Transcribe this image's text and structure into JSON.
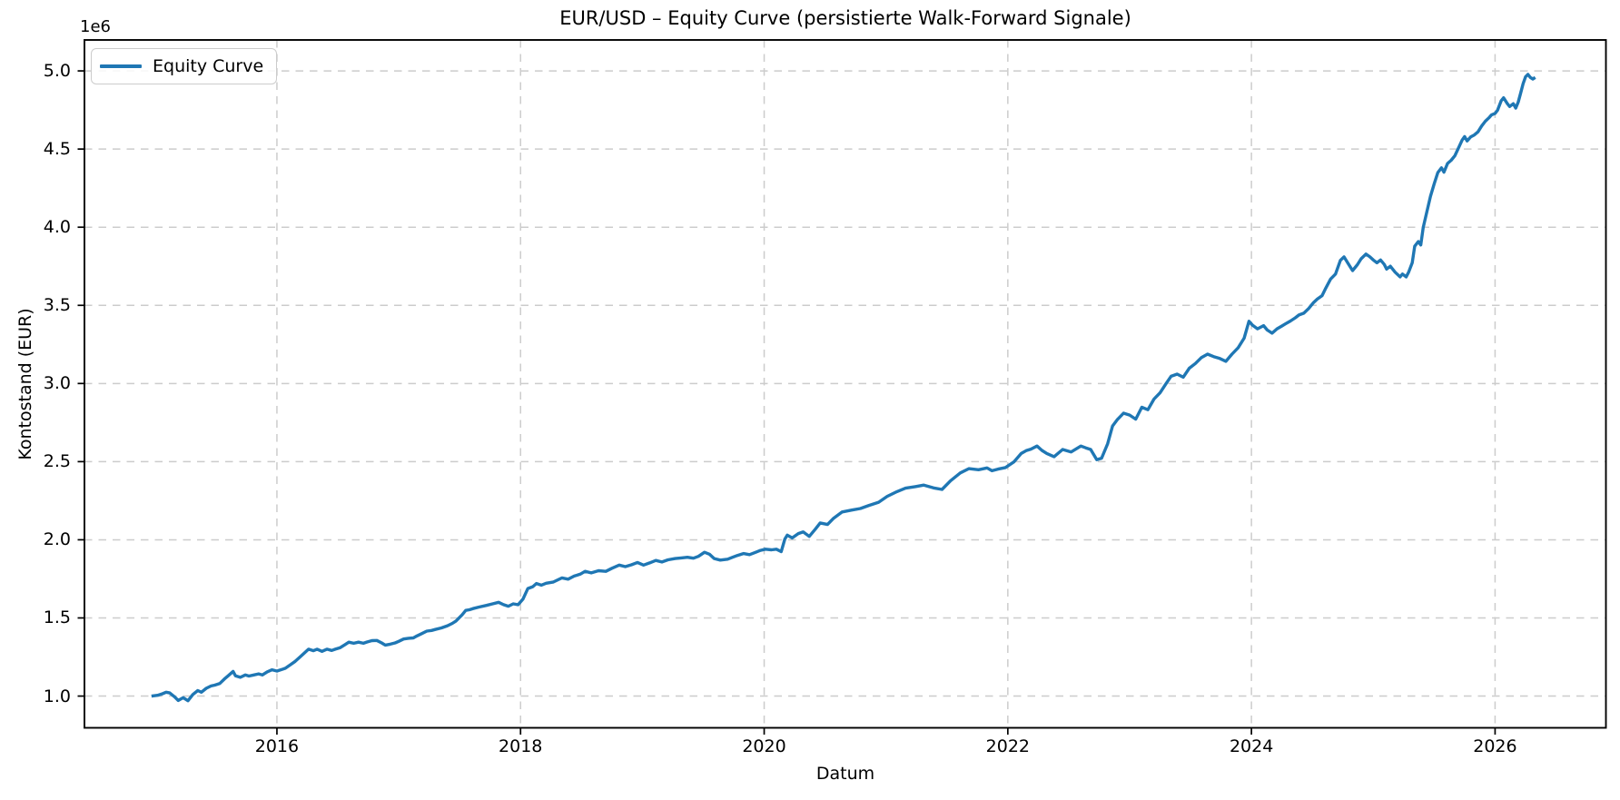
{
  "chart_data": {
    "type": "line",
    "title": "EUR/USD – Equity Curve (persistierte Walk-Forward Signale)",
    "xlabel": "Datum",
    "ylabel": "Kontostand (EUR)",
    "y_offset_text": "1e6",
    "grid": true,
    "grid_style": "dashed",
    "grid_color": "#cccccc",
    "spine_color": "#000000",
    "background_color": "#ffffff",
    "line_color": "#1f77b4",
    "legend": {
      "position": "upper left",
      "entries": [
        "Equity Curve"
      ]
    },
    "x_ticks": [
      2016,
      2018,
      2020,
      2022,
      2024,
      2026
    ],
    "x_tick_labels": [
      "2016",
      "2018",
      "2020",
      "2022",
      "2024",
      "2026"
    ],
    "y_ticks": [
      1.0,
      1.5,
      2.0,
      2.5,
      3.0,
      3.5,
      4.0,
      4.5,
      5.0
    ],
    "y_tick_labels": [
      "1.0",
      "1.5",
      "2.0",
      "2.5",
      "3.0",
      "3.5",
      "4.0",
      "4.5",
      "5.0"
    ],
    "x_range": [
      2014.42,
      2026.91
    ],
    "y_range": [
      0.797,
      5.198
    ],
    "series": [
      {
        "name": "Equity Curve",
        "color": "#1f77b4",
        "x_unit": "year (decimal)",
        "y_unit": "EUR (millions, 1e6)",
        "points": [
          [
            2014.97,
            1.0
          ],
          [
            2015.02,
            1.005
          ],
          [
            2015.06,
            1.015
          ],
          [
            2015.09,
            1.025
          ],
          [
            2015.12,
            1.02
          ],
          [
            2015.16,
            0.995
          ],
          [
            2015.19,
            0.972
          ],
          [
            2015.23,
            0.99
          ],
          [
            2015.27,
            0.97
          ],
          [
            2015.31,
            1.01
          ],
          [
            2015.35,
            1.035
          ],
          [
            2015.38,
            1.025
          ],
          [
            2015.42,
            1.05
          ],
          [
            2015.46,
            1.065
          ],
          [
            2015.49,
            1.07
          ],
          [
            2015.53,
            1.08
          ],
          [
            2015.57,
            1.11
          ],
          [
            2015.6,
            1.13
          ],
          [
            2015.64,
            1.158
          ],
          [
            2015.66,
            1.13
          ],
          [
            2015.7,
            1.12
          ],
          [
            2015.74,
            1.135
          ],
          [
            2015.77,
            1.128
          ],
          [
            2015.81,
            1.135
          ],
          [
            2015.85,
            1.142
          ],
          [
            2015.88,
            1.135
          ],
          [
            2015.92,
            1.155
          ],
          [
            2015.96,
            1.168
          ],
          [
            2016.0,
            1.16
          ],
          [
            2016.04,
            1.17
          ],
          [
            2016.07,
            1.178
          ],
          [
            2016.11,
            1.2
          ],
          [
            2016.15,
            1.222
          ],
          [
            2016.19,
            1.25
          ],
          [
            2016.22,
            1.272
          ],
          [
            2016.26,
            1.3
          ],
          [
            2016.3,
            1.29
          ],
          [
            2016.33,
            1.3
          ],
          [
            2016.37,
            1.286
          ],
          [
            2016.41,
            1.3
          ],
          [
            2016.45,
            1.292
          ],
          [
            2016.48,
            1.3
          ],
          [
            2016.52,
            1.31
          ],
          [
            2016.56,
            1.33
          ],
          [
            2016.59,
            1.345
          ],
          [
            2016.63,
            1.338
          ],
          [
            2016.67,
            1.345
          ],
          [
            2016.71,
            1.338
          ],
          [
            2016.74,
            1.346
          ],
          [
            2016.78,
            1.355
          ],
          [
            2016.82,
            1.356
          ],
          [
            2016.86,
            1.34
          ],
          [
            2016.89,
            1.326
          ],
          [
            2016.93,
            1.332
          ],
          [
            2016.97,
            1.34
          ],
          [
            2017.0,
            1.35
          ],
          [
            2017.04,
            1.365
          ],
          [
            2017.08,
            1.37
          ],
          [
            2017.12,
            1.372
          ],
          [
            2017.15,
            1.385
          ],
          [
            2017.19,
            1.4
          ],
          [
            2017.23,
            1.416
          ],
          [
            2017.27,
            1.42
          ],
          [
            2017.3,
            1.426
          ],
          [
            2017.35,
            1.436
          ],
          [
            2017.4,
            1.45
          ],
          [
            2017.44,
            1.465
          ],
          [
            2017.47,
            1.48
          ],
          [
            2017.52,
            1.52
          ],
          [
            2017.55,
            1.548
          ],
          [
            2017.58,
            1.552
          ],
          [
            2017.61,
            1.56
          ],
          [
            2017.66,
            1.57
          ],
          [
            2017.72,
            1.58
          ],
          [
            2017.77,
            1.59
          ],
          [
            2017.82,
            1.6
          ],
          [
            2017.86,
            1.585
          ],
          [
            2017.9,
            1.575
          ],
          [
            2017.94,
            1.59
          ],
          [
            2017.98,
            1.585
          ],
          [
            2018.02,
            1.62
          ],
          [
            2018.06,
            1.688
          ],
          [
            2018.1,
            1.7
          ],
          [
            2018.13,
            1.72
          ],
          [
            2018.17,
            1.71
          ],
          [
            2018.21,
            1.722
          ],
          [
            2018.27,
            1.73
          ],
          [
            2018.34,
            1.756
          ],
          [
            2018.39,
            1.748
          ],
          [
            2018.44,
            1.768
          ],
          [
            2018.49,
            1.78
          ],
          [
            2018.53,
            1.798
          ],
          [
            2018.58,
            1.788
          ],
          [
            2018.64,
            1.802
          ],
          [
            2018.7,
            1.798
          ],
          [
            2018.75,
            1.818
          ],
          [
            2018.81,
            1.838
          ],
          [
            2018.86,
            1.828
          ],
          [
            2018.91,
            1.84
          ],
          [
            2018.96,
            1.855
          ],
          [
            2019.01,
            1.838
          ],
          [
            2019.06,
            1.852
          ],
          [
            2019.11,
            1.868
          ],
          [
            2019.16,
            1.858
          ],
          [
            2019.21,
            1.872
          ],
          [
            2019.27,
            1.88
          ],
          [
            2019.32,
            1.884
          ],
          [
            2019.37,
            1.888
          ],
          [
            2019.42,
            1.882
          ],
          [
            2019.46,
            1.894
          ],
          [
            2019.51,
            1.92
          ],
          [
            2019.55,
            1.908
          ],
          [
            2019.59,
            1.88
          ],
          [
            2019.64,
            1.87
          ],
          [
            2019.7,
            1.876
          ],
          [
            2019.74,
            1.888
          ],
          [
            2019.78,
            1.9
          ],
          [
            2019.83,
            1.912
          ],
          [
            2019.88,
            1.905
          ],
          [
            2019.93,
            1.92
          ],
          [
            2019.97,
            1.932
          ],
          [
            2020.01,
            1.94
          ],
          [
            2020.06,
            1.936
          ],
          [
            2020.1,
            1.94
          ],
          [
            2020.14,
            1.924
          ],
          [
            2020.17,
            2.005
          ],
          [
            2020.19,
            2.03
          ],
          [
            2020.23,
            2.012
          ],
          [
            2020.28,
            2.04
          ],
          [
            2020.32,
            2.05
          ],
          [
            2020.37,
            2.022
          ],
          [
            2020.42,
            2.068
          ],
          [
            2020.46,
            2.108
          ],
          [
            2020.52,
            2.098
          ],
          [
            2020.57,
            2.138
          ],
          [
            2020.64,
            2.178
          ],
          [
            2020.72,
            2.19
          ],
          [
            2020.79,
            2.2
          ],
          [
            2020.86,
            2.22
          ],
          [
            2020.94,
            2.24
          ],
          [
            2021.01,
            2.278
          ],
          [
            2021.09,
            2.308
          ],
          [
            2021.16,
            2.33
          ],
          [
            2021.24,
            2.34
          ],
          [
            2021.31,
            2.35
          ],
          [
            2021.39,
            2.332
          ],
          [
            2021.46,
            2.322
          ],
          [
            2021.53,
            2.378
          ],
          [
            2021.61,
            2.428
          ],
          [
            2021.68,
            2.455
          ],
          [
            2021.76,
            2.448
          ],
          [
            2021.83,
            2.46
          ],
          [
            2021.87,
            2.442
          ],
          [
            2021.92,
            2.452
          ],
          [
            2021.98,
            2.462
          ],
          [
            2022.05,
            2.498
          ],
          [
            2022.11,
            2.552
          ],
          [
            2022.15,
            2.57
          ],
          [
            2022.19,
            2.58
          ],
          [
            2022.24,
            2.6
          ],
          [
            2022.28,
            2.572
          ],
          [
            2022.32,
            2.552
          ],
          [
            2022.38,
            2.532
          ],
          [
            2022.45,
            2.578
          ],
          [
            2022.52,
            2.562
          ],
          [
            2022.6,
            2.6
          ],
          [
            2022.64,
            2.588
          ],
          [
            2022.68,
            2.578
          ],
          [
            2022.73,
            2.512
          ],
          [
            2022.77,
            2.522
          ],
          [
            2022.82,
            2.615
          ],
          [
            2022.86,
            2.728
          ],
          [
            2022.9,
            2.77
          ],
          [
            2022.95,
            2.81
          ],
          [
            2023.0,
            2.798
          ],
          [
            2023.05,
            2.772
          ],
          [
            2023.1,
            2.848
          ],
          [
            2023.15,
            2.832
          ],
          [
            2023.2,
            2.9
          ],
          [
            2023.25,
            2.94
          ],
          [
            2023.3,
            3.0
          ],
          [
            2023.34,
            3.046
          ],
          [
            2023.39,
            3.06
          ],
          [
            2023.44,
            3.04
          ],
          [
            2023.49,
            3.098
          ],
          [
            2023.54,
            3.128
          ],
          [
            2023.59,
            3.166
          ],
          [
            2023.64,
            3.188
          ],
          [
            2023.69,
            3.172
          ],
          [
            2023.74,
            3.16
          ],
          [
            2023.79,
            3.142
          ],
          [
            2023.84,
            3.188
          ],
          [
            2023.89,
            3.228
          ],
          [
            2023.94,
            3.29
          ],
          [
            2023.98,
            3.398
          ],
          [
            2024.01,
            3.372
          ],
          [
            2024.05,
            3.35
          ],
          [
            2024.1,
            3.37
          ],
          [
            2024.13,
            3.342
          ],
          [
            2024.17,
            3.322
          ],
          [
            2024.21,
            3.35
          ],
          [
            2024.25,
            3.368
          ],
          [
            2024.28,
            3.382
          ],
          [
            2024.32,
            3.4
          ],
          [
            2024.36,
            3.42
          ],
          [
            2024.39,
            3.438
          ],
          [
            2024.43,
            3.45
          ],
          [
            2024.47,
            3.48
          ],
          [
            2024.51,
            3.518
          ],
          [
            2024.54,
            3.54
          ],
          [
            2024.58,
            3.562
          ],
          [
            2024.61,
            3.61
          ],
          [
            2024.65,
            3.668
          ],
          [
            2024.69,
            3.7
          ],
          [
            2024.73,
            3.788
          ],
          [
            2024.76,
            3.81
          ],
          [
            2024.79,
            3.772
          ],
          [
            2024.83,
            3.722
          ],
          [
            2024.87,
            3.76
          ],
          [
            2024.9,
            3.798
          ],
          [
            2024.94,
            3.828
          ],
          [
            2024.97,
            3.812
          ],
          [
            2025.0,
            3.79
          ],
          [
            2025.03,
            3.772
          ],
          [
            2025.06,
            3.79
          ],
          [
            2025.09,
            3.762
          ],
          [
            2025.11,
            3.732
          ],
          [
            2025.14,
            3.75
          ],
          [
            2025.18,
            3.712
          ],
          [
            2025.22,
            3.682
          ],
          [
            2025.24,
            3.7
          ],
          [
            2025.27,
            3.682
          ],
          [
            2025.29,
            3.712
          ],
          [
            2025.32,
            3.772
          ],
          [
            2025.34,
            3.878
          ],
          [
            2025.37,
            3.908
          ],
          [
            2025.39,
            3.886
          ],
          [
            2025.41,
            3.998
          ],
          [
            2025.44,
            4.098
          ],
          [
            2025.47,
            4.198
          ],
          [
            2025.5,
            4.278
          ],
          [
            2025.53,
            4.35
          ],
          [
            2025.56,
            4.38
          ],
          [
            2025.58,
            4.352
          ],
          [
            2025.61,
            4.408
          ],
          [
            2025.64,
            4.428
          ],
          [
            2025.67,
            4.458
          ],
          [
            2025.7,
            4.508
          ],
          [
            2025.73,
            4.558
          ],
          [
            2025.75,
            4.58
          ],
          [
            2025.77,
            4.552
          ],
          [
            2025.8,
            4.578
          ],
          [
            2025.83,
            4.59
          ],
          [
            2025.86,
            4.61
          ],
          [
            2025.89,
            4.648
          ],
          [
            2025.92,
            4.678
          ],
          [
            2025.95,
            4.7
          ],
          [
            2025.97,
            4.718
          ],
          [
            2026.0,
            4.728
          ],
          [
            2026.02,
            4.748
          ],
          [
            2026.05,
            4.808
          ],
          [
            2026.07,
            4.828
          ],
          [
            2026.1,
            4.792
          ],
          [
            2026.12,
            4.772
          ],
          [
            2026.15,
            4.79
          ],
          [
            2026.17,
            4.762
          ],
          [
            2026.19,
            4.8
          ],
          [
            2026.21,
            4.858
          ],
          [
            2026.23,
            4.918
          ],
          [
            2026.25,
            4.962
          ],
          [
            2026.27,
            4.978
          ],
          [
            2026.29,
            4.958
          ],
          [
            2026.31,
            4.948
          ],
          [
            2026.33,
            4.958
          ]
        ]
      }
    ]
  }
}
